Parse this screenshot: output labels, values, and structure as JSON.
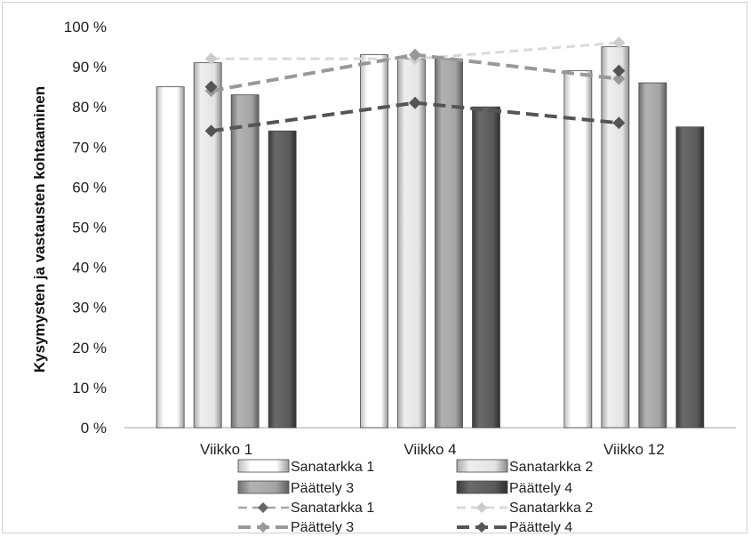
{
  "chart_data": {
    "type": "bar",
    "title": "",
    "xlabel": "",
    "ylabel": "Kysymysten ja vastausten kohtaaminen",
    "ylim": [
      0,
      100
    ],
    "yticks": [
      "0 %",
      "10 %",
      "20 %",
      "30 %",
      "40 %",
      "50 %",
      "60 %",
      "70 %",
      "80 %",
      "90 %",
      "100 %"
    ],
    "categories": [
      "Viikko 1",
      "Viikko 4",
      "Viikko 12"
    ],
    "bar_series": [
      {
        "name": "Sanatarkka 1",
        "values": [
          85,
          93,
          89
        ],
        "color": "#f4f4f4"
      },
      {
        "name": "Sanatarkka 2",
        "values": [
          91,
          92,
          95
        ],
        "color": "#dcdcdc"
      },
      {
        "name": "Päättely 3",
        "values": [
          83,
          92,
          86
        ],
        "color": "#999999"
      },
      {
        "name": "Päättely 4",
        "values": [
          74,
          80,
          75
        ],
        "color": "#555555"
      }
    ],
    "line_series": [
      {
        "name": "Sanatarkka 1",
        "values": [
          null,
          null,
          null
        ],
        "color": "#a8a8a8",
        "marker_color": "#666666"
      },
      {
        "name": "Sanatarkka 2",
        "values": [
          92,
          92,
          96
        ],
        "color": "#d9d9d9",
        "marker_color": "#cccccc"
      },
      {
        "name": "Päättely 3",
        "values": [
          84,
          93,
          87
        ],
        "color": "#999999",
        "marker_color": "#999999"
      },
      {
        "name": "Päättely 4",
        "values": [
          74,
          81,
          76
        ],
        "color": "#555555",
        "marker_color": "#555555"
      }
    ],
    "extra_markers": [
      {
        "series": "Päättely 4",
        "category": "Viikko 1",
        "value": 85
      },
      {
        "series": "Päättely 4",
        "category": "Viikko 12",
        "value": 89
      }
    ],
    "grid": false,
    "legend_position": "bottom"
  }
}
